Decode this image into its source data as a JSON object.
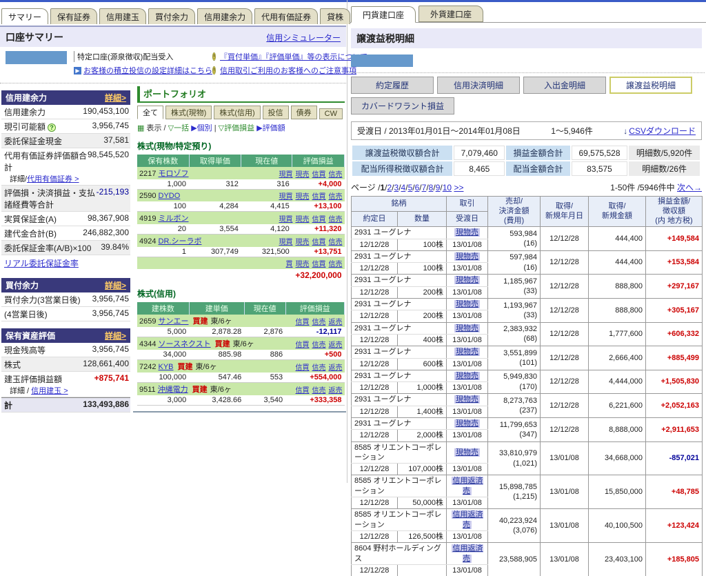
{
  "colors": {
    "accent_navy": "#39397b",
    "positive": "#cc0000",
    "negative": "#000099",
    "green_header": "#4fa376",
    "lavender": "#e9e9f8",
    "tab_bg": "#e3dfc8",
    "highlight": "#ccccee"
  },
  "left_panel": {
    "tabs": [
      {
        "label": "サマリー",
        "active": true
      },
      {
        "label": "保有証券",
        "active": false
      },
      {
        "label": "信用建玉",
        "active": false
      },
      {
        "label": "買付余力",
        "active": false
      },
      {
        "label": "信用建余力",
        "active": false
      },
      {
        "label": "代用有価証券",
        "active": false
      },
      {
        "label": "貸株",
        "active": false
      }
    ],
    "header": {
      "title": "口座サマリー",
      "sim_link": "信用シミュレーター"
    },
    "notice": {
      "account_type": "特定口座(源泉徴収)配当受入",
      "setup_link": "お客様の積立投信の設定詳細はこちら",
      "info_link1": "『買付単価』『評価単価』等の表示について",
      "info_link2": "信用取引ご利用のお客様へのご注意事項"
    },
    "margin_power": {
      "title": "信用建余力",
      "detail_label": "詳細>",
      "rows": [
        {
          "label": "信用建余力",
          "value": "190,453,100"
        },
        {
          "label": "現引可能額",
          "value": "3,956,745",
          "help": true
        },
        {
          "label": "委託保証金現金",
          "value": "37,581",
          "alt": true
        },
        {
          "label": "代用有価証券評価額合計",
          "value": "98,545,520",
          "sub_prefix": "詳細/",
          "sub_link": "代用有価証券 >"
        },
        {
          "label": "評価損・決済損益・支払諸経費等合計",
          "value": "-215,193",
          "cls": "neg",
          "alt": true
        },
        {
          "label": "実質保証金(A)",
          "value": "98,367,908"
        },
        {
          "label": "建代金合計(B)",
          "value": "246,882,300"
        },
        {
          "label": "委託保証金率(A/B)×100",
          "value": "39.84%",
          "alt": true
        }
      ],
      "footer_link": "リアル委託保証金率"
    },
    "buying_power": {
      "title": "買付余力",
      "detail_label": "詳細>",
      "rows": [
        {
          "label": "買付余力(3営業日後)",
          "value": "3,956,745"
        },
        {
          "label": "(4営業日後)",
          "value": "3,956,745"
        }
      ]
    },
    "assets": {
      "title": "保有資産評価",
      "detail_label": "詳細>",
      "rows": [
        {
          "label": "現金残高等",
          "value": "3,956,745"
        },
        {
          "label": "株式",
          "value": "128,661,400",
          "alt": true
        },
        {
          "label": "建玉評価損益額",
          "value": "+875,741",
          "cls": "pos",
          "sub_prefix": "詳細 / ",
          "sub_link": "信用建玉 >"
        }
      ],
      "total_label": "計",
      "total_value": "133,493,886"
    },
    "portfolio": {
      "title": "ポートフォリオ",
      "tabs": [
        {
          "label": "全て",
          "active": true
        },
        {
          "label": "株式(現物)",
          "active": false
        },
        {
          "label": "株式(信用)",
          "active": false
        },
        {
          "label": "投信",
          "active": false
        },
        {
          "label": "債券",
          "active": false
        },
        {
          "label": "CW",
          "active": false
        }
      ],
      "filter": {
        "grid": "▦",
        "label": "表示",
        "sep": "/",
        "item1": "▽一括",
        "item2": "▶個別",
        "bar": "|",
        "item3": "▽評価損益",
        "item4": "▶評価額"
      },
      "cash_section": {
        "title": "株式(現物/特定預り)",
        "headers": [
          "保有株数",
          "取得単価",
          "現在値",
          "評価損益"
        ],
        "links": [
          "現買",
          "現売",
          "信買",
          "信売"
        ],
        "rows": [
          {
            "code": "2217",
            "name": "モロゾフ",
            "qty": "1,000",
            "price": "312",
            "current": "316",
            "pl": "+4,000",
            "cls": "pos"
          },
          {
            "code": "2590",
            "name": "DYDO",
            "qty": "100",
            "price": "4,284",
            "current": "4,415",
            "pl": "+13,100",
            "cls": "pos"
          },
          {
            "code": "4919",
            "name": "ミルボン",
            "qty": "20",
            "price": "3,554",
            "current": "4,120",
            "pl": "+11,320",
            "cls": "pos"
          },
          {
            "code": "4924",
            "name": "DR.シーラボ",
            "qty": "1",
            "price": "307,749",
            "current": "321,500",
            "pl": "+13,751",
            "cls": "pos"
          }
        ],
        "total_links": [
          "買",
          "現売",
          "信買",
          "信売"
        ],
        "total_pl": "+32,200,000"
      },
      "margin_section": {
        "title": "株式(信用)",
        "headers": [
          "建株数",
          "建単価",
          "現在値",
          "評価損益"
        ],
        "links": [
          "信買",
          "信売",
          "返売"
        ],
        "rows": [
          {
            "code": "2659",
            "name": "サンエー",
            "side": "買建",
            "term": "東/6ヶ",
            "qty": "5,000",
            "price": "2,878.28",
            "current": "2,876",
            "pl": "-12,117",
            "cls": "neg"
          },
          {
            "code": "4344",
            "name": "ソースネクスト",
            "side": "買建",
            "term": "東/6ヶ",
            "qty": "34,000",
            "price": "885.98",
            "current": "886",
            "pl": "+500",
            "cls": "pos"
          },
          {
            "code": "7242",
            "name": "KYB",
            "side": "買建",
            "term": "東/6ヶ",
            "qty": "100,000",
            "price": "547.46",
            "current": "553",
            "pl": "+554,000",
            "cls": "pos"
          },
          {
            "code": "9511",
            "name": "沖縄電力",
            "side": "買建",
            "term": "東/6ヶ",
            "qty": "3,000",
            "price": "3,428.66",
            "current": "3,540",
            "pl": "+333,358",
            "cls": "pos"
          }
        ]
      }
    }
  },
  "right_panel": {
    "tabs": [
      {
        "label": "円貨建口座",
        "active": true
      },
      {
        "label": "外貨建口座",
        "active": false
      }
    ],
    "title": "譲渡益税明細",
    "menu_buttons": [
      {
        "label": "約定履歴",
        "active": false
      },
      {
        "label": "信用決済明細",
        "active": false
      },
      {
        "label": "入出金明細",
        "active": false
      },
      {
        "label": "譲渡益税明細",
        "active": true
      }
    ],
    "menu_button2": "カバードワラント損益",
    "period_bar": {
      "label": "受渡日 / 2013年01月01日～2014年01月08日",
      "count": "1～5,946件",
      "csv_arrow": "↓",
      "csv_link": "CSVダウンロード"
    },
    "summary_rows": [
      {
        "label1": "譲渡益税徴収額合計",
        "value1": "7,079,460",
        "label2": "損益金額合計",
        "value2": "69,575,528",
        "detail": "明細数/5,920件"
      },
      {
        "label1": "配当所得税徴収額合計",
        "value1": "8,465",
        "label2": "配当金額合計",
        "value2": "83,575",
        "detail": "明細数/26件"
      }
    ],
    "pagination": {
      "label": "ページ",
      "slash": "/",
      "current": "1",
      "pages": [
        "2",
        "3",
        "4",
        "5",
        "6",
        "7",
        "8",
        "9",
        "10"
      ],
      "more": ">>",
      "range": "1-50件 /5946件中",
      "next": "次へ→"
    },
    "table": {
      "h_brand": "銘柄",
      "h_exec": "約定日",
      "h_qty": "数量",
      "h_trade": "取引",
      "h_settle": "受渡日",
      "h_sale": "売却/\n決済金額\n(費用)",
      "h_acq_date": "取得/\n新規年月日",
      "h_acq_amt": "取得/\n新規金額",
      "h_pl": "損益金額/\n徴収額\n(内 地方税)",
      "rows": [
        {
          "name": "2931 ユーグレナ",
          "exec": "12/12/28",
          "qty": "100株",
          "trade": "現物売",
          "settle": "13/01/08",
          "sale": "593,984\n(16)",
          "acq_date": "12/12/28",
          "acq_amt": "444,400",
          "pl": "+149,584",
          "cls": "pos"
        },
        {
          "name": "2931 ユーグレナ",
          "exec": "12/12/28",
          "qty": "100株",
          "trade": "現物売",
          "settle": "13/01/08",
          "sale": "597,984\n(16)",
          "acq_date": "12/12/28",
          "acq_amt": "444,400",
          "pl": "+153,584",
          "cls": "pos"
        },
        {
          "name": "2931 ユーグレナ",
          "exec": "12/12/28",
          "qty": "200株",
          "trade": "現物売",
          "settle": "13/01/08",
          "sale": "1,185,967\n(33)",
          "acq_date": "12/12/28",
          "acq_amt": "888,800",
          "pl": "+297,167",
          "cls": "pos"
        },
        {
          "name": "2931 ユーグレナ",
          "exec": "12/12/28",
          "qty": "200株",
          "trade": "現物売",
          "settle": "13/01/08",
          "sale": "1,193,967\n(33)",
          "acq_date": "12/12/28",
          "acq_amt": "888,800",
          "pl": "+305,167",
          "cls": "pos"
        },
        {
          "name": "2931 ユーグレナ",
          "exec": "12/12/28",
          "qty": "400株",
          "trade": "現物売",
          "settle": "13/01/08",
          "sale": "2,383,932\n(68)",
          "acq_date": "12/12/28",
          "acq_amt": "1,777,600",
          "pl": "+606,332",
          "cls": "pos"
        },
        {
          "name": "2931 ユーグレナ",
          "exec": "12/12/28",
          "qty": "600株",
          "trade": "現物売",
          "settle": "13/01/08",
          "sale": "3,551,899\n(101)",
          "acq_date": "12/12/28",
          "acq_amt": "2,666,400",
          "pl": "+885,499",
          "cls": "pos"
        },
        {
          "name": "2931 ユーグレナ",
          "exec": "12/12/28",
          "qty": "1,000株",
          "trade": "現物売",
          "settle": "13/01/08",
          "sale": "5,949,830\n(170)",
          "acq_date": "12/12/28",
          "acq_amt": "4,444,000",
          "pl": "+1,505,830",
          "cls": "pos"
        },
        {
          "name": "2931 ユーグレナ",
          "exec": "12/12/28",
          "qty": "1,400株",
          "trade": "現物売",
          "settle": "13/01/08",
          "sale": "8,273,763\n(237)",
          "acq_date": "12/12/28",
          "acq_amt": "6,221,600",
          "pl": "+2,052,163",
          "cls": "pos"
        },
        {
          "name": "2931 ユーグレナ",
          "exec": "12/12/28",
          "qty": "2,000株",
          "trade": "現物売",
          "settle": "13/01/08",
          "sale": "11,799,653\n(347)",
          "acq_date": "12/12/28",
          "acq_amt": "8,888,000",
          "pl": "+2,911,653",
          "cls": "pos"
        },
        {
          "name": "8585 オリエントコーポレーション",
          "exec": "12/12/28",
          "qty": "107,000株",
          "trade": "現物売",
          "settle": "13/01/08",
          "sale": "33,810,979\n(1,021)",
          "acq_date": "13/01/08",
          "acq_amt": "34,668,000",
          "pl": "-857,021",
          "cls": "neg"
        },
        {
          "name": "8585 オリエントコーポレーション",
          "exec": "12/12/28",
          "qty": "50,000株",
          "trade": "信用返済売",
          "settle": "13/01/08",
          "sale": "15,898,785\n(1,215)",
          "acq_date": "13/01/08",
          "acq_amt": "15,850,000",
          "pl": "+48,785",
          "cls": "pos"
        },
        {
          "name": "8585 オリエントコーポレーション",
          "exec": "12/12/28",
          "qty": "126,500株",
          "trade": "信用返済売",
          "settle": "13/01/08",
          "sale": "40,223,924\n(3,076)",
          "acq_date": "13/01/08",
          "acq_amt": "40,100,500",
          "pl": "+123,424",
          "cls": "pos"
        },
        {
          "name": "8604 野村ホールディングス",
          "exec": "12/12/28",
          "qty": "",
          "trade": "信用返済売",
          "settle": "13/01/08",
          "sale": "23,588,905",
          "acq_date": "13/01/08",
          "acq_amt": "23,403,100",
          "pl": "+185,805",
          "cls": "pos"
        }
      ]
    }
  }
}
